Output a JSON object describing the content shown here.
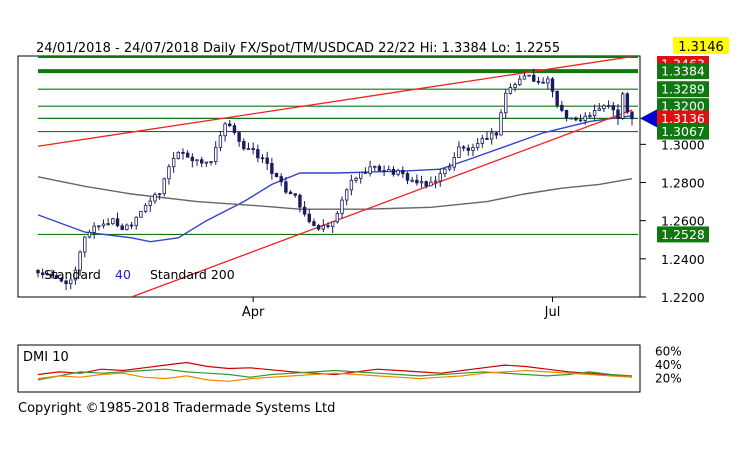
{
  "header": {
    "text": "24/01/2018 - 24/07/2018   Daily  FX/Spot/TM/USDCAD 22/22  Hi: 1.3384  Lo: 1.2255",
    "last_price": "1.3146",
    "last_price_bg": "#ffff00"
  },
  "copyright": "Copyright ©1985-2018 Tradermade Systems Ltd",
  "chart_data": [
    {
      "type": "candlestick",
      "title": "24/01/2018 - 24/07/2018   Daily  FX/Spot/TM/USDCAD 22/22",
      "hi": 1.3384,
      "lo": 1.2255,
      "last": 1.3146,
      "ylim": [
        1.22,
        1.3463
      ],
      "y_ticks": [
        "1.2200",
        "1.2400",
        "1.2600",
        "1.2800",
        "1.3000",
        "1.3289",
        "1.3384"
      ],
      "x_ticks": [
        {
          "label": "Apr",
          "index": 46
        },
        {
          "label": "Jul",
          "index": 110
        }
      ],
      "n_bars": 128,
      "close_path": [
        [
          0,
          1.233
        ],
        [
          4,
          1.2295
        ],
        [
          7,
          1.2275
        ],
        [
          8,
          1.2335
        ],
        [
          10,
          1.252
        ],
        [
          12,
          1.257
        ],
        [
          16,
          1.26
        ],
        [
          18,
          1.256
        ],
        [
          20,
          1.259
        ],
        [
          23,
          1.269
        ],
        [
          26,
          1.274
        ],
        [
          28,
          1.289
        ],
        [
          30,
          1.296
        ],
        [
          32,
          1.294
        ],
        [
          34,
          1.291
        ],
        [
          37,
          1.291
        ],
        [
          40,
          1.31
        ],
        [
          42,
          1.307
        ],
        [
          44,
          1.298
        ],
        [
          46,
          1.296
        ],
        [
          49,
          1.29
        ],
        [
          51,
          1.282
        ],
        [
          53,
          1.276
        ],
        [
          55,
          1.274
        ],
        [
          57,
          1.262
        ],
        [
          59,
          1.257
        ],
        [
          61,
          1.256
        ],
        [
          63,
          1.258
        ],
        [
          65,
          1.27
        ],
        [
          67,
          1.281
        ],
        [
          71,
          1.288
        ],
        [
          77,
          1.285
        ],
        [
          80,
          1.281
        ],
        [
          83,
          1.278
        ],
        [
          86,
          1.284
        ],
        [
          88,
          1.289
        ],
        [
          90,
          1.298
        ],
        [
          93,
          1.297
        ],
        [
          96,
          1.304
        ],
        [
          98,
          1.306
        ],
        [
          100,
          1.327
        ],
        [
          103,
          1.334
        ],
        [
          105,
          1.337
        ],
        [
          107,
          1.332
        ],
        [
          109,
          1.333
        ],
        [
          111,
          1.321
        ],
        [
          113,
          1.315
        ],
        [
          116,
          1.312
        ],
        [
          118,
          1.316
        ],
        [
          120,
          1.318
        ],
        [
          122,
          1.321
        ],
        [
          124,
          1.314
        ],
        [
          125,
          1.325
        ],
        [
          126,
          1.317
        ],
        [
          127,
          1.3146
        ]
      ],
      "horizontal_levels": [
        {
          "value": 1.3463,
          "label": "1.3463",
          "label_bg": "#dd1111",
          "color": "#117711",
          "thick": true
        },
        {
          "value": 1.3384,
          "label": "1.3384",
          "label_bg": "#117711",
          "color": "#117711",
          "thick": true
        },
        {
          "value": 1.3289,
          "label": "1.3289",
          "label_bg": "#117711",
          "color": "#117711"
        },
        {
          "value": 1.32,
          "label": "1.3200",
          "label_bg": "#117711",
          "color": "#117711"
        },
        {
          "value": 1.3136,
          "label": "1.3136",
          "label_bg": "#dd1111",
          "color": "#117711"
        },
        {
          "value": 1.3067,
          "label": "1.3067",
          "label_bg": "#117711",
          "color": "#117711"
        },
        {
          "value": 1.2528,
          "label": "1.2528",
          "label_bg": "#117711",
          "color": "#117711"
        }
      ],
      "pointer": {
        "value": 1.3136,
        "color": "#0000cc"
      },
      "trendlines": [
        {
          "from": [
            0,
            1.299
          ],
          "to": [
            127,
            1.346
          ],
          "color": "#ee2222"
        },
        {
          "from": [
            20,
            1.22
          ],
          "to": [
            127,
            1.318
          ],
          "color": "#ee2222"
        }
      ],
      "moving_averages": [
        {
          "name": "Standard 40",
          "label": "Standard",
          "label_value": "40",
          "label_value_color": "#2222cc",
          "color": "#3344cc",
          "points": [
            [
              0,
              1.263
            ],
            [
              10,
              1.254
            ],
            [
              20,
              1.251
            ],
            [
              24,
              1.249
            ],
            [
              30,
              1.251
            ],
            [
              36,
              1.26
            ],
            [
              44,
              1.27
            ],
            [
              50,
              1.279
            ],
            [
              56,
              1.285
            ],
            [
              64,
              1.285
            ],
            [
              78,
              1.286
            ],
            [
              86,
              1.287
            ],
            [
              92,
              1.292
            ],
            [
              100,
              1.299
            ],
            [
              108,
              1.306
            ],
            [
              118,
              1.312
            ],
            [
              127,
              1.315
            ]
          ]
        },
        {
          "name": "Standard 200",
          "label": "Standard 200",
          "color": "#666666",
          "points": [
            [
              0,
              1.283
            ],
            [
              10,
              1.278
            ],
            [
              20,
              1.274
            ],
            [
              34,
              1.27
            ],
            [
              46,
              1.268
            ],
            [
              56,
              1.266
            ],
            [
              70,
              1.266
            ],
            [
              84,
              1.267
            ],
            [
              96,
              1.27
            ],
            [
              104,
              1.274
            ],
            [
              112,
              1.277
            ],
            [
              120,
              1.279
            ],
            [
              127,
              1.282
            ]
          ]
        }
      ]
    },
    {
      "type": "line",
      "title": "DMI 10",
      "y_ticks": [
        "60%",
        "40%",
        "20%"
      ],
      "series": [
        {
          "name": "DMI",
          "color": "#cc0000",
          "values": [
            26,
            30,
            28,
            34,
            32,
            36,
            40,
            44,
            38,
            35,
            36,
            33,
            30,
            28,
            26,
            30,
            34,
            32,
            30,
            28,
            32,
            36,
            40,
            38,
            34,
            30,
            28,
            25,
            22
          ]
        },
        {
          "name": "DMI",
          "color": "#339933",
          "values": [
            18,
            24,
            30,
            28,
            30,
            32,
            34,
            30,
            28,
            26,
            22,
            26,
            28,
            30,
            32,
            30,
            28,
            26,
            24,
            26,
            28,
            30,
            28,
            26,
            24,
            26,
            30,
            26,
            24
          ]
        },
        {
          "name": "DMI",
          "color": "#ee8800",
          "values": [
            20,
            24,
            22,
            26,
            28,
            22,
            20,
            24,
            18,
            16,
            20,
            22,
            24,
            26,
            28,
            26,
            24,
            22,
            20,
            22,
            24,
            28,
            30,
            32,
            30,
            28,
            26,
            24,
            22
          ]
        }
      ]
    }
  ]
}
